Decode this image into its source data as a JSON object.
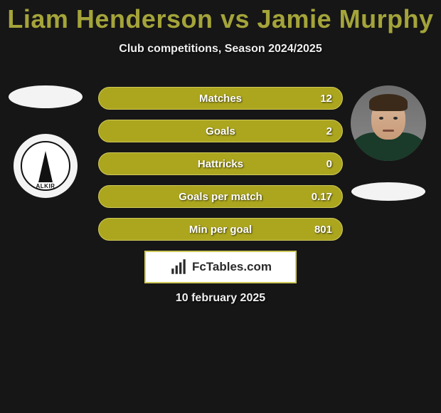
{
  "colors": {
    "title": "#a4a43a",
    "subtitle": "#f0f0f0",
    "bar_bg": "#aca61f",
    "bar_border": "#cfc95a",
    "brand_border": "#cfc95a",
    "brand_text": "#2a2a2a",
    "brand_bg": "#ffffff"
  },
  "header": {
    "title": "Liam Henderson vs Jamie Murphy",
    "subtitle": "Club competitions, Season 2024/2025"
  },
  "left": {
    "club_ring_text": "ALKIR"
  },
  "right": {
    "player_name": "Jamie Murphy"
  },
  "stats": [
    {
      "label": "Matches",
      "value": "12"
    },
    {
      "label": "Goals",
      "value": "2"
    },
    {
      "label": "Hattricks",
      "value": "0"
    },
    {
      "label": "Goals per match",
      "value": "0.17"
    },
    {
      "label": "Min per goal",
      "value": "801"
    }
  ],
  "brand": {
    "text": "FcTables.com"
  },
  "footer": {
    "date": "10 february 2025"
  }
}
